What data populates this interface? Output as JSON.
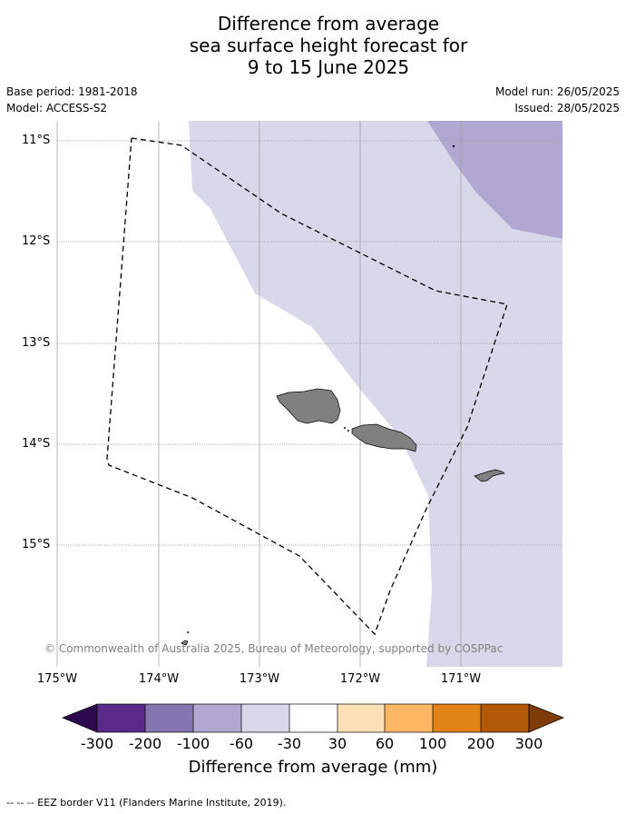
{
  "title_lines": [
    "Difference from average",
    "sea surface height forecast for",
    "9 to 15 June 2025"
  ],
  "meta": {
    "base_period": "Base period: 1981-2018",
    "model": "Model: ACCESS-S2",
    "model_run": "Model run: 26/05/2025",
    "issued": "Issued: 28/05/2025"
  },
  "lat_labels": [
    "11°S",
    "12°S",
    "13°S",
    "14°S",
    "15°S"
  ],
  "lon_labels": [
    "175°W",
    "174°W",
    "173°W",
    "172°W",
    "171°W"
  ],
  "copyright": "© Commonwealth of Australia 2025, Bureau of Meteorology, supported by COSPPac",
  "colorbar": {
    "ticks": [
      "-300",
      "-200",
      "-100",
      "-60",
      "-30",
      "30",
      "60",
      "100",
      "200",
      "300"
    ],
    "colors": [
      "#2d0a4e",
      "#5a2a8a",
      "#8575b0",
      "#b0a8d0",
      "#d8d8ea",
      "#ffffff",
      "#fee0b6",
      "#fdb762",
      "#e08214",
      "#b35806",
      "#7f3b08"
    ],
    "title": "Difference from average (mm)"
  },
  "legend_eez": "--  --  -- EEZ border V11 (Flanders Marine Institute, 2019)."
}
